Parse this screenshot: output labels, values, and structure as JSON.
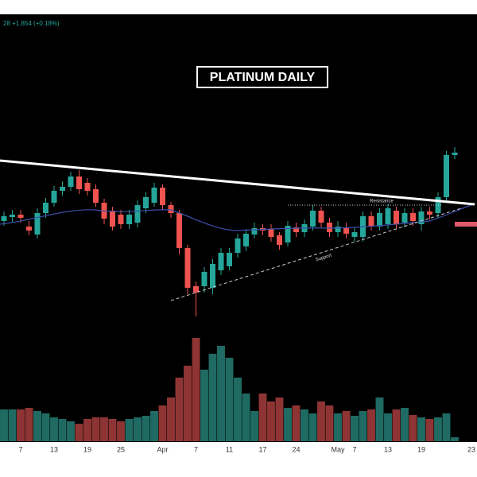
{
  "chart_data": {
    "type": "candlestick",
    "header_text": "28  +1.854 (+0.18%)",
    "title": "PLATINUM DAILY",
    "annotations": [
      "Resistance",
      "Support"
    ],
    "categories": [
      null,
      null,
      "7",
      null,
      null,
      null,
      "13",
      null,
      null,
      null,
      "19",
      null,
      null,
      null,
      "25",
      null,
      null,
      null,
      null,
      "Apr",
      null,
      null,
      null,
      "7",
      null,
      null,
      null,
      "11",
      null,
      null,
      null,
      "17",
      null,
      null,
      null,
      "24",
      null,
      null,
      null,
      null,
      "May",
      null,
      "7",
      null,
      null,
      null,
      "13",
      null,
      null,
      null,
      "19",
      null,
      null,
      null,
      null,
      null,
      "23"
    ],
    "open": [
      1042,
      1047,
      1050,
      1035,
      1025,
      1052,
      1065,
      1080,
      1085,
      1098,
      1090,
      1082,
      1065,
      1055,
      1050,
      1038,
      1040,
      1058,
      1065,
      1084,
      1062,
      1052,
      1008,
      960,
      960,
      958,
      980,
      985,
      1002,
      1010,
      1025,
      1033,
      1032,
      1024,
      1015,
      1034,
      1028,
      1035,
      1055,
      1040,
      1028,
      1033,
      1022,
      1022,
      1048,
      1035,
      1038,
      1055,
      1040,
      1052,
      1038,
      1054,
      1052,
      1072,
      1125,
      null,
      null
    ],
    "high": [
      1054,
      1056,
      1056,
      1042,
      1058,
      1071,
      1086,
      1092,
      1104,
      1106,
      1096,
      1088,
      1070,
      1060,
      1056,
      1056,
      1068,
      1078,
      1090,
      1088,
      1066,
      1056,
      1012,
      966,
      984,
      994,
      1008,
      1008,
      1026,
      1032,
      1040,
      1038,
      1038,
      1028,
      1042,
      1040,
      1044,
      1062,
      1060,
      1046,
      1042,
      1040,
      1034,
      1054,
      1054,
      1058,
      1064,
      1060,
      1058,
      1058,
      1060,
      1060,
      1078,
      1130,
      1135,
      null,
      null
    ],
    "low": [
      1036,
      1040,
      1040,
      1024,
      1020,
      1046,
      1060,
      1074,
      1080,
      1076,
      1074,
      1060,
      1038,
      1030,
      1032,
      1032,
      1034,
      1052,
      1060,
      1056,
      1046,
      1000,
      950,
      922,
      952,
      950,
      974,
      980,
      996,
      1004,
      1020,
      1024,
      1016,
      1006,
      1010,
      1022,
      1022,
      1030,
      1034,
      1022,
      1022,
      1020,
      1016,
      1016,
      1030,
      1030,
      1032,
      1032,
      1034,
      1036,
      1030,
      1044,
      1046,
      1066,
      1120,
      null,
      null
    ],
    "close": [
      1048,
      1050,
      1046,
      1030,
      1052,
      1065,
      1080,
      1085,
      1098,
      1082,
      1080,
      1065,
      1045,
      1035,
      1038,
      1050,
      1062,
      1072,
      1084,
      1062,
      1052,
      1008,
      958,
      952,
      978,
      988,
      1002,
      1002,
      1020,
      1026,
      1033,
      1030,
      1022,
      1012,
      1036,
      1028,
      1038,
      1055,
      1040,
      1028,
      1035,
      1026,
      1028,
      1048,
      1035,
      1052,
      1058,
      1038,
      1052,
      1042,
      1054,
      1050,
      1072,
      1125,
      1128,
      null,
      null
    ],
    "volume": [
      40,
      40,
      40,
      42,
      38,
      35,
      30,
      28,
      25,
      22,
      28,
      30,
      30,
      28,
      25,
      28,
      30,
      32,
      38,
      45,
      55,
      80,
      95,
      130,
      90,
      110,
      120,
      105,
      80,
      60,
      38,
      60,
      50,
      55,
      42,
      45,
      40,
      35,
      50,
      45,
      35,
      38,
      32,
      38,
      40,
      55,
      35,
      40,
      42,
      33,
      30,
      28,
      30,
      35,
      5,
      null,
      null
    ],
    "ylim": [
      730,
      1310
    ],
    "volume_ylim": [
      0,
      140
    ],
    "up_color": "#26a69a",
    "down_color": "#ef5350",
    "volume_up_color": "#1f6b63",
    "volume_down_color": "#8f3434"
  }
}
